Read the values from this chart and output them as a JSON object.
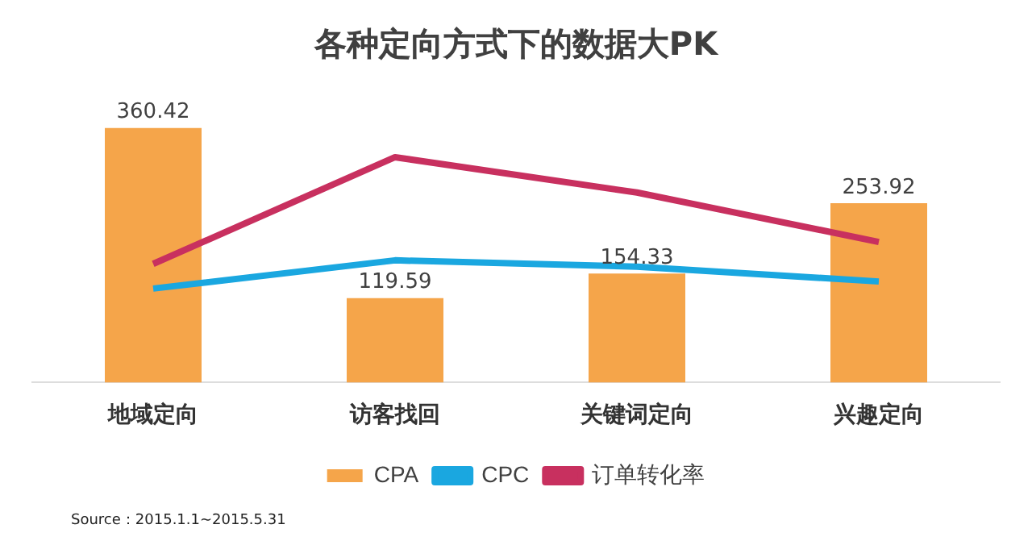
{
  "chart_data": {
    "type": "bar",
    "title": "各种定向方式下的数据大PK",
    "categories": [
      "地域定向",
      "访客找回",
      "关键词定向",
      "兴趣定向"
    ],
    "series": [
      {
        "name": "CPA",
        "color": "#f5a54a",
        "values": [
          360.42,
          119.59,
          154.33,
          253.92
        ],
        "value_labels": [
          "360.42",
          "119.59",
          "154.33",
          "253.92"
        ]
      },
      {
        "name": "CPC",
        "type": "line",
        "color": "#1aa7e0",
        "values": [
          133,
          173,
          164,
          143
        ]
      },
      {
        "name": "订单转化率",
        "type": "line",
        "color": "#c8305f",
        "values": [
          168,
          319,
          269,
          199
        ]
      }
    ],
    "tick_labels": "x",
    "grid": false,
    "legend": "bottom",
    "marker": "none",
    "annotations": [
      "Source：2015.1.1~2015.5.31"
    ]
  }
}
